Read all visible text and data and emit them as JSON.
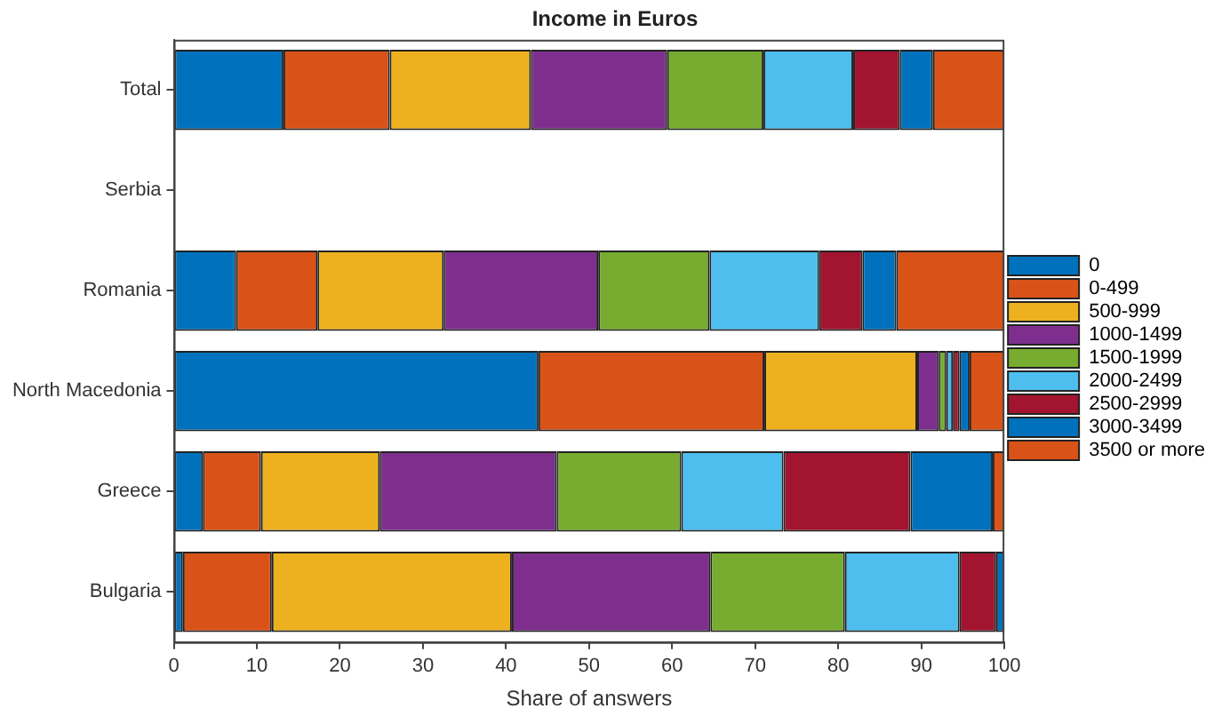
{
  "chart_data": {
    "type": "bar",
    "orientation": "horizontal",
    "stacked": true,
    "title": "Income in Euros",
    "xlabel": "Share of answers",
    "categories": [
      "Total",
      "Serbia",
      "Romania",
      "North Macedonia",
      "Greece",
      "Bulgaria"
    ],
    "xlim": [
      0,
      100
    ],
    "xticks": [
      0,
      10,
      20,
      30,
      40,
      50,
      60,
      70,
      80,
      90,
      100
    ],
    "grid": false,
    "legend": "right",
    "series": [
      {
        "name": "0",
        "color": "#0072bd",
        "values": [
          13.2,
          0,
          7.5,
          43.9,
          3.5,
          1.1
        ]
      },
      {
        "name": "0-499",
        "color": "#d95319",
        "values": [
          12.8,
          0,
          9.8,
          27.2,
          7.0,
          10.7
        ]
      },
      {
        "name": "500-999",
        "color": "#edb120",
        "values": [
          17.0,
          0,
          15.2,
          18.4,
          14.3,
          28.9
        ]
      },
      {
        "name": "1000-1499",
        "color": "#7e2f8e",
        "values": [
          16.4,
          0,
          18.6,
          2.6,
          21.3,
          23.9
        ]
      },
      {
        "name": "1500-1999",
        "color": "#77ac30",
        "values": [
          11.6,
          0,
          13.4,
          0.9,
          15.0,
          16.2
        ]
      },
      {
        "name": "2000-2499",
        "color": "#4dbeee",
        "values": [
          10.8,
          0,
          13.2,
          0.8,
          12.3,
          13.8
        ]
      },
      {
        "name": "2500-2999",
        "color": "#a2142f",
        "values": [
          5.6,
          0,
          5.2,
          0.8,
          15.3,
          4.4
        ]
      },
      {
        "name": "3000-3499",
        "color": "#0072bd",
        "values": [
          4.0,
          0,
          4.1,
          1.2,
          9.9,
          1.0
        ]
      },
      {
        "name": "3500 or more",
        "color": "#d95319",
        "values": [
          8.6,
          0,
          13.0,
          4.2,
          1.4,
          0
        ]
      }
    ]
  }
}
